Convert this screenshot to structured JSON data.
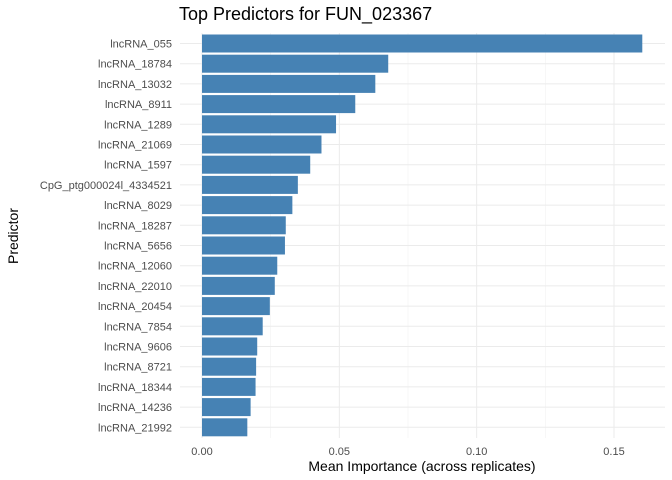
{
  "chart_data": {
    "type": "bar",
    "orientation": "horizontal",
    "title": "Top Predictors for FUN_023367",
    "xlabel": "Mean Importance (across replicates)",
    "ylabel": "Predictor",
    "xlim": [
      0,
      0.168
    ],
    "xticks": [
      0,
      0.05,
      0.1,
      0.15
    ],
    "xtick_labels": [
      "0.00",
      "0.05",
      "0.10",
      "0.15"
    ],
    "grid": true,
    "bar_color": "#4682b4",
    "categories": [
      "lncRNA_055",
      "lncRNA_18784",
      "lncRNA_13032",
      "lncRNA_8911",
      "lncRNA_1289",
      "lncRNA_21069",
      "lncRNA_1597",
      "CpG_ptg000024l_4334521",
      "lncRNA_8029",
      "lncRNA_18287",
      "lncRNA_5656",
      "lncRNA_12060",
      "lncRNA_22010",
      "lncRNA_20454",
      "lncRNA_7854",
      "lncRNA_9606",
      "lncRNA_8721",
      "lncRNA_18344",
      "lncRNA_14236",
      "lncRNA_21992"
    ],
    "values": [
      0.1603,
      0.0678,
      0.0631,
      0.0558,
      0.0488,
      0.0435,
      0.0394,
      0.0349,
      0.0329,
      0.0305,
      0.0302,
      0.0274,
      0.0265,
      0.0247,
      0.0221,
      0.0201,
      0.0197,
      0.0195,
      0.0177,
      0.0165
    ]
  }
}
